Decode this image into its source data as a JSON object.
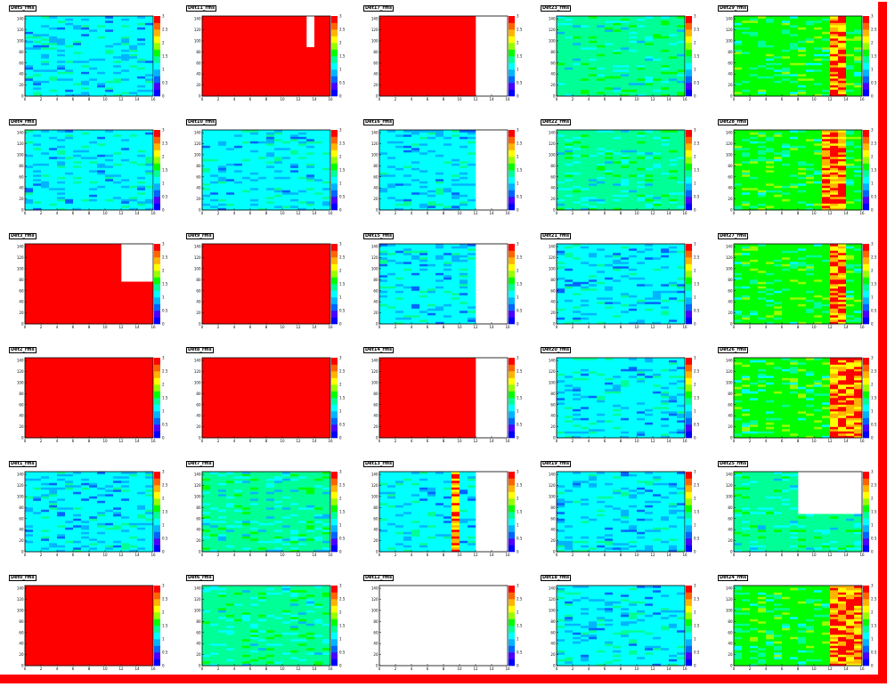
{
  "canvas": {
    "background": "#ffffff",
    "frame_color": "#ff0000",
    "plot_missing_color": "#ffffff"
  },
  "palette": [
    "#0000ff",
    "#4b00ff",
    "#0064ff",
    "#00b4ff",
    "#00ffff",
    "#00ff96",
    "#00ff00",
    "#96ff00",
    "#ffff00",
    "#ffb400",
    "#ff6400",
    "#ff0000"
  ],
  "axes": {
    "x_ticks": [
      "0",
      "2",
      "4",
      "6",
      "8",
      "10",
      "12",
      "14",
      "16"
    ],
    "y_ticks": [
      "0",
      "20",
      "40",
      "60",
      "80",
      "100",
      "120",
      "140"
    ],
    "z_ticks": [
      "0",
      "0.5",
      "1",
      "1.5",
      "2",
      "2.5",
      "3"
    ]
  },
  "chart_data": [
    {
      "type": "heatmap",
      "title": "Det5_rms",
      "xlim": [
        0,
        16
      ],
      "ylim": [
        0,
        145
      ],
      "zlim": [
        0,
        3
      ],
      "pattern": "uniform",
      "base": 4,
      "empty_cols_from": null,
      "hole": null,
      "hot_cols": []
    },
    {
      "type": "heatmap",
      "title": "Det11_rms",
      "xlim": [
        0,
        16
      ],
      "ylim": [
        0,
        145
      ],
      "zlim": [
        0,
        3
      ],
      "pattern": "saturated",
      "base": 11,
      "empty_cols_from": null,
      "hole": {
        "x": [
          13,
          14
        ],
        "y": [
          90,
          145
        ]
      },
      "hot_cols": []
    },
    {
      "type": "heatmap",
      "title": "Det17_rms",
      "xlim": [
        0,
        16
      ],
      "ylim": [
        0,
        145
      ],
      "zlim": [
        0,
        3
      ],
      "pattern": "saturated",
      "base": 11,
      "empty_cols_from": 12,
      "hole": null,
      "hot_cols": []
    },
    {
      "type": "heatmap",
      "title": "Det23_rms",
      "xlim": [
        0,
        16
      ],
      "ylim": [
        0,
        145
      ],
      "zlim": [
        0,
        3
      ],
      "pattern": "uniform",
      "base": 5,
      "empty_cols_from": null,
      "hole": null,
      "hot_cols": []
    },
    {
      "type": "heatmap",
      "title": "Det29_rms",
      "xlim": [
        0,
        16
      ],
      "ylim": [
        0,
        145
      ],
      "zlim": [
        0,
        3
      ],
      "pattern": "hot",
      "base": 6,
      "empty_cols_from": null,
      "hole": null,
      "hot_cols": [
        12,
        13
      ]
    },
    {
      "type": "heatmap",
      "title": "Det4_rms",
      "xlim": [
        0,
        16
      ],
      "ylim": [
        0,
        145
      ],
      "zlim": [
        0,
        3
      ],
      "pattern": "uniform",
      "base": 4,
      "empty_cols_from": null,
      "hole": null,
      "hot_cols": []
    },
    {
      "type": "heatmap",
      "title": "Det10_rms",
      "xlim": [
        0,
        16
      ],
      "ylim": [
        0,
        145
      ],
      "zlim": [
        0,
        3
      ],
      "pattern": "uniform",
      "base": 4,
      "empty_cols_from": null,
      "hole": null,
      "hot_cols": []
    },
    {
      "type": "heatmap",
      "title": "Det16_rms",
      "xlim": [
        0,
        16
      ],
      "ylim": [
        0,
        145
      ],
      "zlim": [
        0,
        3
      ],
      "pattern": "uniform",
      "base": 4,
      "empty_cols_from": 12,
      "hole": null,
      "hot_cols": []
    },
    {
      "type": "heatmap",
      "title": "Det22_rms",
      "xlim": [
        0,
        16
      ],
      "ylim": [
        0,
        145
      ],
      "zlim": [
        0,
        3
      ],
      "pattern": "uniform",
      "base": 5,
      "empty_cols_from": null,
      "hole": null,
      "hot_cols": []
    },
    {
      "type": "heatmap",
      "title": "Det28_rms",
      "xlim": [
        0,
        16
      ],
      "ylim": [
        0,
        145
      ],
      "zlim": [
        0,
        3
      ],
      "pattern": "hot",
      "base": 6,
      "empty_cols_from": null,
      "hole": null,
      "hot_cols": [
        11,
        12,
        13
      ]
    },
    {
      "type": "heatmap",
      "title": "Det3_rms",
      "xlim": [
        0,
        16
      ],
      "ylim": [
        0,
        145
      ],
      "zlim": [
        0,
        3
      ],
      "pattern": "saturated",
      "base": 11,
      "empty_cols_from": null,
      "hole": {
        "x": [
          12,
          16
        ],
        "y": [
          75,
          145
        ]
      },
      "hot_cols": []
    },
    {
      "type": "heatmap",
      "title": "Det9_rms",
      "xlim": [
        0,
        16
      ],
      "ylim": [
        0,
        145
      ],
      "zlim": [
        0,
        3
      ],
      "pattern": "saturated",
      "base": 11,
      "empty_cols_from": null,
      "hole": null,
      "hot_cols": []
    },
    {
      "type": "heatmap",
      "title": "Det15_rms",
      "xlim": [
        0,
        16
      ],
      "ylim": [
        0,
        145
      ],
      "zlim": [
        0,
        3
      ],
      "pattern": "uniform",
      "base": 4,
      "empty_cols_from": 12,
      "hole": null,
      "hot_cols": []
    },
    {
      "type": "heatmap",
      "title": "Det21_rms",
      "xlim": [
        0,
        16
      ],
      "ylim": [
        0,
        145
      ],
      "zlim": [
        0,
        3
      ],
      "pattern": "uniform",
      "base": 4,
      "empty_cols_from": null,
      "hole": null,
      "hot_cols": []
    },
    {
      "type": "heatmap",
      "title": "Det27_rms",
      "xlim": [
        0,
        16
      ],
      "ylim": [
        0,
        145
      ],
      "zlim": [
        0,
        3
      ],
      "pattern": "hot",
      "base": 6,
      "empty_cols_from": null,
      "hole": null,
      "hot_cols": [
        12,
        13
      ]
    },
    {
      "type": "heatmap",
      "title": "Det2_rms",
      "xlim": [
        0,
        16
      ],
      "ylim": [
        0,
        145
      ],
      "zlim": [
        0,
        3
      ],
      "pattern": "saturated",
      "base": 11,
      "empty_cols_from": null,
      "hole": null,
      "hot_cols": []
    },
    {
      "type": "heatmap",
      "title": "Det8_rms",
      "xlim": [
        0,
        16
      ],
      "ylim": [
        0,
        145
      ],
      "zlim": [
        0,
        3
      ],
      "pattern": "saturated",
      "base": 11,
      "empty_cols_from": null,
      "hole": null,
      "hot_cols": []
    },
    {
      "type": "heatmap",
      "title": "Det14_rms",
      "xlim": [
        0,
        16
      ],
      "ylim": [
        0,
        145
      ],
      "zlim": [
        0,
        3
      ],
      "pattern": "saturated",
      "base": 11,
      "empty_cols_from": 12,
      "hole": null,
      "hot_cols": []
    },
    {
      "type": "heatmap",
      "title": "Det20_rms",
      "xlim": [
        0,
        16
      ],
      "ylim": [
        0,
        145
      ],
      "zlim": [
        0,
        3
      ],
      "pattern": "uniform",
      "base": 4,
      "empty_cols_from": null,
      "hole": null,
      "hot_cols": []
    },
    {
      "type": "heatmap",
      "title": "Det26_rms",
      "xlim": [
        0,
        16
      ],
      "ylim": [
        0,
        145
      ],
      "zlim": [
        0,
        3
      ],
      "pattern": "hot",
      "base": 6,
      "empty_cols_from": null,
      "hole": null,
      "hot_cols": [
        12,
        13,
        14,
        15
      ]
    },
    {
      "type": "heatmap",
      "title": "Det1_rms",
      "xlim": [
        0,
        16
      ],
      "ylim": [
        0,
        145
      ],
      "zlim": [
        0,
        3
      ],
      "pattern": "uniform",
      "base": 4,
      "empty_cols_from": null,
      "hole": null,
      "hot_cols": []
    },
    {
      "type": "heatmap",
      "title": "Det7_rms",
      "xlim": [
        0,
        16
      ],
      "ylim": [
        0,
        145
      ],
      "zlim": [
        0,
        3
      ],
      "pattern": "uniform",
      "base": 5,
      "empty_cols_from": null,
      "hole": null,
      "hot_cols": []
    },
    {
      "type": "heatmap",
      "title": "Det13_rms",
      "xlim": [
        0,
        16
      ],
      "ylim": [
        0,
        145
      ],
      "zlim": [
        0,
        3
      ],
      "pattern": "uniform",
      "base": 4,
      "empty_cols_from": 12,
      "hole": null,
      "hot_cols": [
        9
      ]
    },
    {
      "type": "heatmap",
      "title": "Det19_rms",
      "xlim": [
        0,
        16
      ],
      "ylim": [
        0,
        145
      ],
      "zlim": [
        0,
        3
      ],
      "pattern": "uniform",
      "base": 4,
      "empty_cols_from": null,
      "hole": null,
      "hot_cols": []
    },
    {
      "type": "heatmap",
      "title": "Det25_rms",
      "xlim": [
        0,
        16
      ],
      "ylim": [
        0,
        145
      ],
      "zlim": [
        0,
        3
      ],
      "pattern": "uniform",
      "base": 5,
      "empty_cols_from": null,
      "hole": {
        "x": [
          8,
          16
        ],
        "y": [
          70,
          145
        ]
      },
      "hot_cols": []
    },
    {
      "type": "heatmap",
      "title": "Det0_rms",
      "xlim": [
        0,
        16
      ],
      "ylim": [
        0,
        145
      ],
      "zlim": [
        0,
        3
      ],
      "pattern": "saturated",
      "base": 11,
      "empty_cols_from": null,
      "hole": null,
      "hot_cols": []
    },
    {
      "type": "heatmap",
      "title": "Det6_rms",
      "xlim": [
        0,
        16
      ],
      "ylim": [
        0,
        145
      ],
      "zlim": [
        0,
        3
      ],
      "pattern": "uniform",
      "base": 5,
      "empty_cols_from": null,
      "hole": null,
      "hot_cols": []
    },
    {
      "type": "heatmap",
      "title": "Det12_rms",
      "xlim": [
        0,
        16
      ],
      "ylim": [
        0,
        145
      ],
      "zlim": [
        0,
        3
      ],
      "pattern": "empty",
      "base": 0,
      "empty_cols_from": 0,
      "hole": null,
      "hot_cols": []
    },
    {
      "type": "heatmap",
      "title": "Det18_rms",
      "xlim": [
        0,
        16
      ],
      "ylim": [
        0,
        145
      ],
      "zlim": [
        0,
        3
      ],
      "pattern": "uniform",
      "base": 4,
      "empty_cols_from": null,
      "hole": null,
      "hot_cols": []
    },
    {
      "type": "heatmap",
      "title": "Det24_rms",
      "xlim": [
        0,
        16
      ],
      "ylim": [
        0,
        145
      ],
      "zlim": [
        0,
        3
      ],
      "pattern": "hot",
      "base": 6,
      "empty_cols_from": null,
      "hole": null,
      "hot_cols": [
        12,
        13,
        14,
        15
      ]
    }
  ]
}
